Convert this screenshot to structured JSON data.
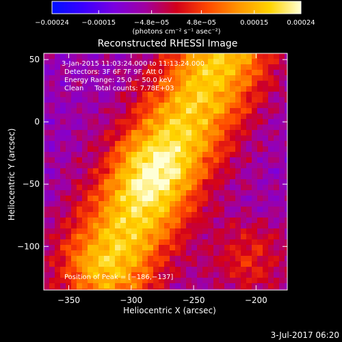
{
  "chart_data": {
    "type": "heatmap",
    "title": "Reconstructed RHESSI Image",
    "xlabel": "Heliocentric X (arcsec)",
    "ylabel": "Heliocentric Y (arcsec)",
    "xlim": [
      -370,
      -175
    ],
    "ylim": [
      -135,
      55
    ],
    "x_ticks": [
      -350,
      -300,
      -250,
      -200
    ],
    "x_tick_labels": [
      "−350",
      "−300",
      "−250",
      "−200"
    ],
    "y_ticks": [
      -100,
      -50,
      0,
      50
    ],
    "y_tick_labels": [
      "−100",
      "−50",
      "0",
      "50"
    ],
    "grid": false,
    "colorbar": {
      "units_label": "(photons cm⁻² s⁻¹ asec⁻²)",
      "range": [
        -0.00024,
        0.00024
      ],
      "ticks": [
        -0.00024,
        -0.00015,
        -4.8e-05,
        4.8e-05,
        0.00015,
        0.00024
      ],
      "tick_labels": [
        "−0.00024",
        "−0.00015",
        "−4.8e−05",
        "4.8e−05",
        "0.00015",
        "0.00024"
      ],
      "colormap": [
        "#0010ff",
        "#3a00ff",
        "#7a00e0",
        "#a000a0",
        "#d2001a",
        "#ff4800",
        "#ff9600",
        "#ffd400",
        "#ffffd6"
      ]
    },
    "peak": {
      "x": -186,
      "y": -137
    },
    "colors": {
      "background": "#000000",
      "text": "#ffffff",
      "plot_base": "#5a1aa8"
    }
  },
  "annotations": {
    "time_range": "3-Jan-2015 11:03:24.000 to 11:13:24.000",
    "detectors": "Detectors: 3F 6F 7F 9F, Att 0",
    "energy_range": "Energy Range: 25.0 − 50.0 keV",
    "clean_info": "Clean     Total counts: 7.78E+03",
    "peak_position": "Position of Peak = [−186,−137]"
  },
  "footer": {
    "date": "3-Jul-2017 06:20"
  }
}
